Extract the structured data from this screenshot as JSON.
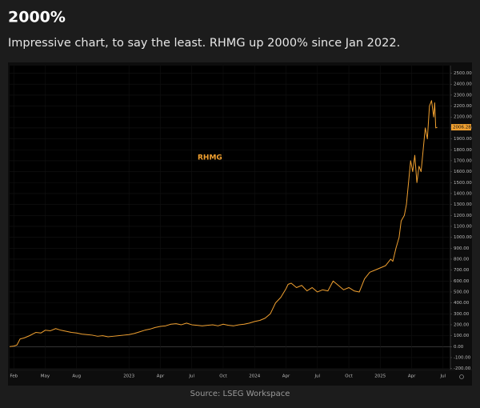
{
  "chart_data": {
    "type": "line",
    "title": "2000%",
    "subtitle": "Impressive chart, to say the least. RHMG up 2000% since Jan 2022.",
    "source": "Source: LSEG Workspace",
    "annotation": "RHMG",
    "grid": true,
    "x": [
      0.6,
      1.0,
      1.3,
      1.6,
      2.0,
      2.5,
      3.1,
      3.6,
      4.0,
      4.5,
      5.0,
      5.5,
      6.0,
      6.5,
      7.0,
      7.5,
      8.0,
      8.5,
      9.0,
      9.5,
      10.0,
      10.5,
      11.0,
      11.5,
      12.0,
      12.5,
      13.0,
      13.5,
      14.0,
      14.5,
      15.0,
      15.5,
      16.0,
      16.5,
      17.0,
      17.5,
      18.0,
      18.5,
      19.0,
      19.5,
      20.0,
      20.5,
      21.0,
      21.5,
      22.0,
      22.5,
      23.0,
      23.5,
      24.0,
      24.5,
      25.0,
      25.5,
      26.0,
      26.5,
      27.0,
      27.2,
      27.5,
      28.0,
      28.5,
      29.0,
      29.5,
      30.0,
      30.5,
      31.0,
      31.5,
      32.0,
      32.5,
      33.0,
      33.5,
      34.0,
      34.5,
      35.0,
      35.5,
      36.0,
      36.5,
      37.0,
      37.2,
      37.5,
      37.8,
      38.0,
      38.3,
      38.5,
      38.7,
      38.9,
      39.1,
      39.3,
      39.5,
      39.7,
      39.9,
      40.1,
      40.3,
      40.5,
      40.7,
      40.9,
      41.1,
      41.2,
      41.3,
      41.45
    ],
    "series": [
      {
        "name": "RHMG",
        "color": "#f0a030",
        "values": [
          0,
          5,
          15,
          70,
          80,
          100,
          130,
          125,
          150,
          145,
          165,
          150,
          140,
          130,
          125,
          115,
          110,
          105,
          95,
          100,
          90,
          95,
          100,
          105,
          110,
          120,
          135,
          150,
          160,
          175,
          185,
          190,
          205,
          210,
          200,
          215,
          200,
          195,
          190,
          195,
          200,
          190,
          205,
          195,
          190,
          200,
          205,
          215,
          230,
          240,
          260,
          300,
          400,
          450,
          530,
          570,
          580,
          540,
          560,
          510,
          540,
          500,
          520,
          510,
          600,
          560,
          520,
          540,
          510,
          500,
          620,
          680,
          700,
          720,
          740,
          800,
          780,
          900,
          1000,
          1150,
          1200,
          1300,
          1500,
          1700,
          1600,
          1750,
          1500,
          1650,
          1600,
          1800,
          2000,
          1900,
          2200,
          2250,
          2100,
          2230,
          2000,
          2006.28
        ]
      }
    ],
    "xlim": [
      0.6,
      42.7
    ],
    "xticks": [
      {
        "value": 1,
        "label": "Feb"
      },
      {
        "value": 4,
        "label": "May"
      },
      {
        "value": 7,
        "label": "Aug"
      },
      {
        "value": 12,
        "label": "2023"
      },
      {
        "value": 15,
        "label": "Apr"
      },
      {
        "value": 18,
        "label": "Jul"
      },
      {
        "value": 21,
        "label": "Oct"
      },
      {
        "value": 24,
        "label": "2024"
      },
      {
        "value": 27,
        "label": "Apr"
      },
      {
        "value": 30,
        "label": "Jul"
      },
      {
        "value": 33,
        "label": "Oct"
      },
      {
        "value": 36,
        "label": "2025"
      },
      {
        "value": 39,
        "label": "Apr"
      },
      {
        "value": 42,
        "label": "Jul"
      }
    ],
    "ylim": [
      -210,
      2570
    ],
    "yticks": [
      {
        "value": -200,
        "label": "-200.00"
      },
      {
        "value": -100,
        "label": "-100.00"
      },
      {
        "value": 0,
        "label": "0.00"
      },
      {
        "value": 100,
        "label": "100.00"
      },
      {
        "value": 200,
        "label": "200.00"
      },
      {
        "value": 300,
        "label": "300.00"
      },
      {
        "value": 400,
        "label": "400.00"
      },
      {
        "value": 500,
        "label": "500.00"
      },
      {
        "value": 600,
        "label": "600.00"
      },
      {
        "value": 700,
        "label": "700.00"
      },
      {
        "value": 800,
        "label": "800.00"
      },
      {
        "value": 900,
        "label": "900.00"
      },
      {
        "value": 1000,
        "label": "1000.00"
      },
      {
        "value": 1100,
        "label": "1100.00"
      },
      {
        "value": 1200,
        "label": "1200.00"
      },
      {
        "value": 1300,
        "label": "1300.00"
      },
      {
        "value": 1400,
        "label": "1400.00"
      },
      {
        "value": 1500,
        "label": "1500.00"
      },
      {
        "value": 1600,
        "label": "1600.00"
      },
      {
        "value": 1700,
        "label": "1700.00"
      },
      {
        "value": 1800,
        "label": "1800.00"
      },
      {
        "value": 1900,
        "label": "1900.00"
      },
      {
        "value": 2000,
        "label": "2000.00"
      },
      {
        "value": 2100,
        "label": "2100.00"
      },
      {
        "value": 2200,
        "label": "2200.00"
      },
      {
        "value": 2300,
        "label": "2300.00"
      },
      {
        "value": 2400,
        "label": "2400.00"
      },
      {
        "value": 2500,
        "label": "2500.00"
      }
    ]
  }
}
